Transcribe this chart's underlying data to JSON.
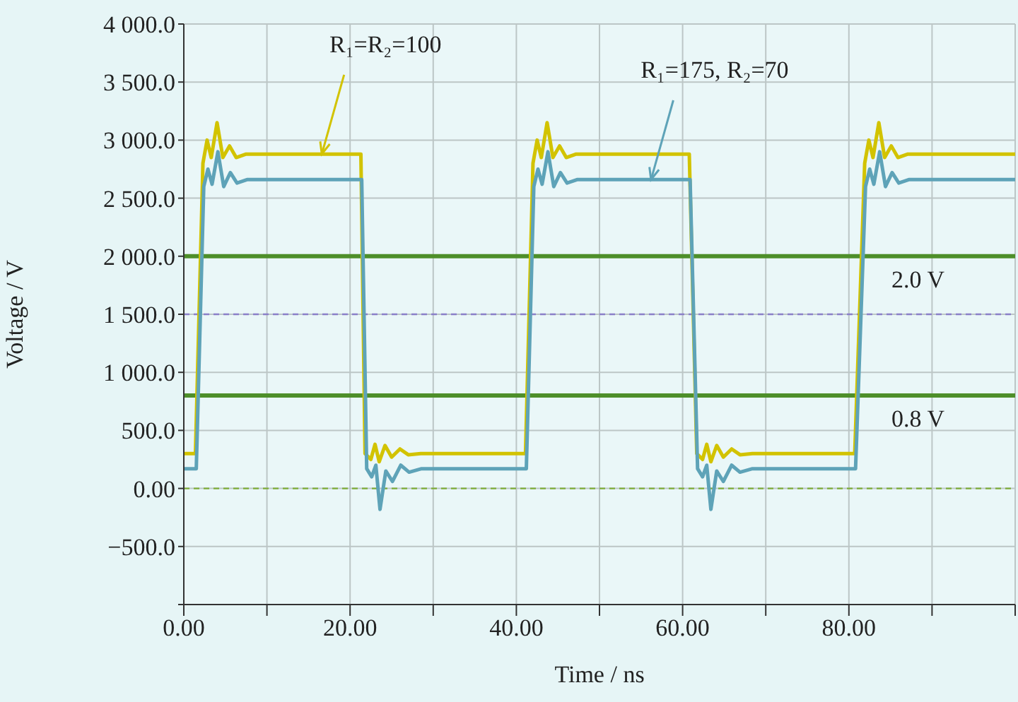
{
  "chart_data": {
    "type": "line",
    "xlabel": "Time / ns",
    "ylabel": "Voltage / V",
    "xlim": [
      0,
      100
    ],
    "ylim": [
      -1000,
      4000
    ],
    "xticks": [
      {
        "value": 0,
        "label": "0.00"
      },
      {
        "value": 10,
        "label": null
      },
      {
        "value": 20,
        "label": "20.00"
      },
      {
        "value": 30,
        "label": null
      },
      {
        "value": 40,
        "label": "40.00"
      },
      {
        "value": 50,
        "label": null
      },
      {
        "value": 60,
        "label": "60.00"
      },
      {
        "value": 70,
        "label": null
      },
      {
        "value": 80,
        "label": "80.00"
      },
      {
        "value": 90,
        "label": null
      },
      {
        "value": 100,
        "label": null
      }
    ],
    "yticks": [
      {
        "value": -1000,
        "label": null
      },
      {
        "value": -500,
        "label": "−500.0"
      },
      {
        "value": 0,
        "label": "0.00"
      },
      {
        "value": 500,
        "label": "500.0"
      },
      {
        "value": 1000,
        "label": "1 000.0"
      },
      {
        "value": 1500,
        "label": "1 500.0"
      },
      {
        "value": 2000,
        "label": "2 000.0"
      },
      {
        "value": 2500,
        "label": "2 500.0"
      },
      {
        "value": 3000,
        "label": "3 000.0"
      },
      {
        "value": 3500,
        "label": "3 500.0"
      },
      {
        "value": 4000,
        "label": "4 000.0"
      }
    ],
    "grid": true,
    "marker": "none",
    "line_style": "solid",
    "series": [
      {
        "color": "#d2c300",
        "x": [
          0,
          1.4,
          2.3,
          2.8,
          3.3,
          4.0,
          4.7,
          5.5,
          6.3,
          7.5,
          21.3,
          21.8,
          22.5,
          23.0,
          23.5,
          24.2,
          25.0,
          26.0,
          27.0,
          28.5,
          41.1,
          42.0,
          42.5,
          43.0,
          43.7,
          44.4,
          45.2,
          46.0,
          47.2,
          60.8,
          61.7,
          62.4,
          62.9,
          63.4,
          64.1,
          64.9,
          65.9,
          66.9,
          68.4,
          80.7,
          81.9,
          82.4,
          82.9,
          83.6,
          84.3,
          85.1,
          85.9,
          87.1,
          100
        ],
        "values": [
          300,
          300,
          2800,
          3000,
          2850,
          3150,
          2850,
          2950,
          2850,
          2880,
          2880,
          300,
          250,
          380,
          230,
          370,
          270,
          340,
          290,
          300,
          300,
          2800,
          3000,
          2850,
          3150,
          2850,
          2950,
          2850,
          2880,
          2880,
          300,
          250,
          380,
          230,
          370,
          270,
          340,
          290,
          300,
          300,
          2800,
          3000,
          2850,
          3150,
          2850,
          2950,
          2850,
          2880,
          2880
        ]
      },
      {
        "color": "#5ea3b8",
        "x": [
          0,
          1.5,
          2.4,
          2.9,
          3.4,
          4.1,
          4.8,
          5.6,
          6.4,
          7.6,
          21.4,
          22.0,
          22.6,
          23.1,
          23.6,
          24.3,
          25.1,
          26.1,
          27.1,
          28.6,
          41.2,
          42.1,
          42.6,
          43.1,
          43.8,
          44.5,
          45.3,
          46.1,
          47.3,
          60.9,
          61.8,
          62.4,
          62.9,
          63.4,
          64.1,
          64.9,
          65.9,
          66.9,
          68.4,
          80.8,
          82.0,
          82.5,
          83.0,
          83.7,
          84.4,
          85.2,
          86.0,
          87.2,
          100
        ],
        "values": [
          170,
          170,
          2600,
          2750,
          2620,
          2900,
          2600,
          2720,
          2630,
          2660,
          2660,
          170,
          100,
          200,
          -180,
          150,
          60,
          200,
          140,
          170,
          170,
          2600,
          2750,
          2620,
          2900,
          2600,
          2720,
          2630,
          2660,
          2660,
          170,
          100,
          200,
          -180,
          150,
          60,
          200,
          140,
          170,
          170,
          2600,
          2750,
          2620,
          2900,
          2600,
          2720,
          2630,
          2660,
          2660
        ]
      }
    ],
    "ref_lines": [
      {
        "axis": "y",
        "value": 2000,
        "label": "2.0 V",
        "color": "#4e8f2a",
        "line_style": "solid"
      },
      {
        "axis": "y",
        "value": 800,
        "label": "0.8 V",
        "color": "#4e8f2a",
        "line_style": "solid"
      },
      {
        "axis": "y",
        "value": 1500,
        "color": "#8a7fc8",
        "line_style": "dashed"
      },
      {
        "axis": "y",
        "value": 0,
        "color": "#7fae3a",
        "line_style": "dashed"
      }
    ],
    "annotations": [
      {
        "text": "R₁=R₂=100",
        "x": 16.6,
        "y": 2880
      },
      {
        "text": "R₁=175, R₂=70",
        "x": 56.2,
        "y": 2660
      }
    ]
  }
}
